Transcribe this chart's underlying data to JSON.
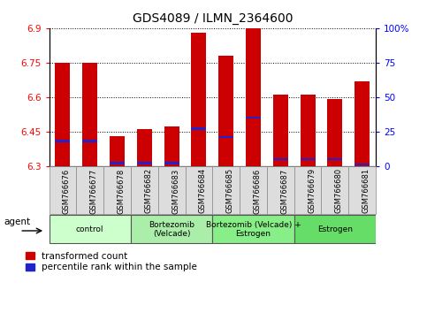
{
  "title": "GDS4089 / ILMN_2364600",
  "samples": [
    "GSM766676",
    "GSM766677",
    "GSM766678",
    "GSM766682",
    "GSM766683",
    "GSM766684",
    "GSM766685",
    "GSM766686",
    "GSM766687",
    "GSM766679",
    "GSM766680",
    "GSM766681"
  ],
  "red_values": [
    6.75,
    6.75,
    6.43,
    6.46,
    6.47,
    6.88,
    6.78,
    6.9,
    6.61,
    6.61,
    6.59,
    6.67
  ],
  "blue_values": [
    18,
    18,
    2,
    2,
    2,
    27,
    21,
    35,
    5,
    5,
    5,
    1
  ],
  "y_min": 6.3,
  "y_max": 6.9,
  "y_ticks_left": [
    6.3,
    6.45,
    6.6,
    6.75,
    6.9
  ],
  "y_ticks_right_vals": [
    0,
    25,
    50,
    75,
    100
  ],
  "y_ticks_right_labels": [
    "0",
    "25",
    "50",
    "75",
    "100%"
  ],
  "bar_color": "#cc0000",
  "blue_color": "#2222cc",
  "group_labels": [
    "control",
    "Bortezomib\n(Velcade)",
    "Bortezomib (Velcade) +\nEstrogen",
    "Estrogen"
  ],
  "group_starts": [
    0,
    3,
    6,
    9
  ],
  "group_ends": [
    3,
    6,
    9,
    12
  ],
  "group_colors": [
    "#ccffcc",
    "#aaeeaa",
    "#88ee88",
    "#66dd66"
  ],
  "legend_red": "transformed count",
  "legend_blue": "percentile rank within the sample",
  "agent_label": "agent",
  "bar_width": 0.55,
  "sample_box_color": "#dddddd",
  "bg_color": "#ffffff"
}
